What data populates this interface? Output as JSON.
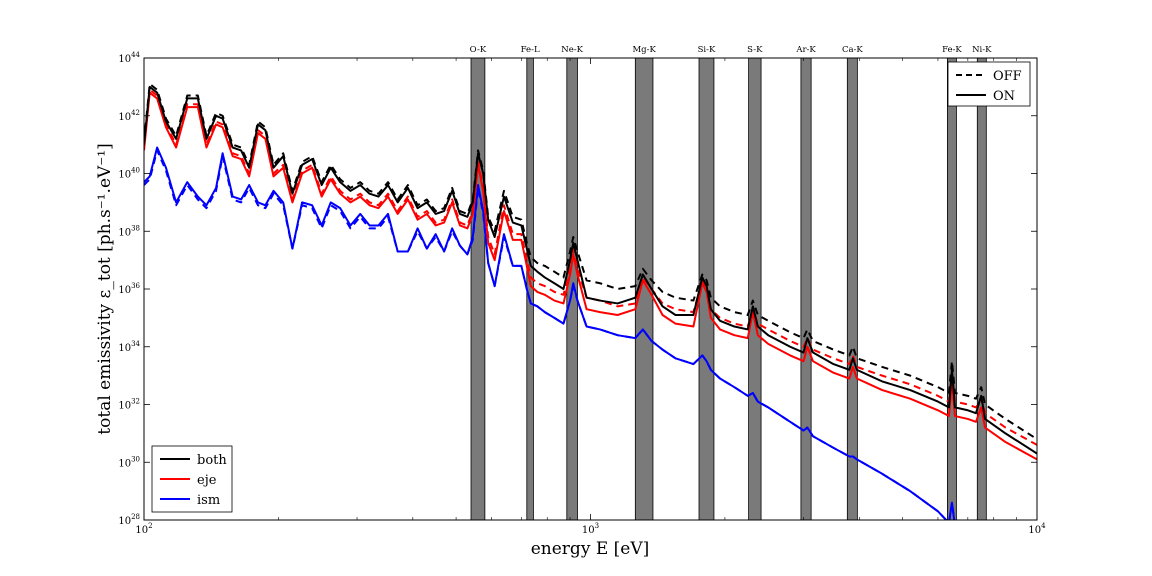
{
  "chart_data": {
    "type": "line",
    "xlabel": "energy   E   [eV]",
    "ylabel": "total emissivity   ε_tot   [ph.s⁻¹.eV⁻¹]",
    "xscale": "log",
    "yscale": "log",
    "xlim": [
      100,
      10000
    ],
    "ylim": [
      1e+28,
      1e+44
    ],
    "grid": false,
    "x_ticks": [
      {
        "value": 100,
        "base": "10",
        "exp": "2"
      },
      {
        "value": 1000,
        "base": "10",
        "exp": "3"
      },
      {
        "value": 10000,
        "base": "10",
        "exp": "4"
      }
    ],
    "y_ticks": [
      {
        "value": 1e+28,
        "base": "10",
        "exp": "28"
      },
      {
        "value": 1e+30,
        "base": "10",
        "exp": "30"
      },
      {
        "value": 1e+32,
        "base": "10",
        "exp": "32"
      },
      {
        "value": 1e+34,
        "base": "10",
        "exp": "34"
      },
      {
        "value": 1e+36,
        "base": "10",
        "exp": "36"
      },
      {
        "value": 1e+38,
        "base": "10",
        "exp": "38"
      },
      {
        "value": 1e+40,
        "base": "10",
        "exp": "40"
      },
      {
        "value": 1e+42,
        "base": "10",
        "exp": "42"
      },
      {
        "value": 1e+44,
        "base": "10",
        "exp": "44"
      }
    ],
    "bands": [
      {
        "label": "O-K",
        "from": 540,
        "to": 580
      },
      {
        "label": "Fe-L",
        "from": 720,
        "to": 745
      },
      {
        "label": "Ne-K",
        "from": 885,
        "to": 935
      },
      {
        "label": "Mg-K",
        "from": 1260,
        "to": 1380
      },
      {
        "label": "Si-K",
        "from": 1750,
        "to": 1890
      },
      {
        "label": "S-K",
        "from": 2260,
        "to": 2410
      },
      {
        "label": "Ar-K",
        "from": 2960,
        "to": 3120
      },
      {
        "label": "Ca-K",
        "from": 3760,
        "to": 3960
      },
      {
        "label": "Fe-K",
        "from": 6300,
        "to": 6600
      },
      {
        "label": "Ni-K",
        "from": 7350,
        "to": 7700
      }
    ],
    "legend_components": {
      "placement": "lower-left",
      "entries": [
        {
          "label": "both",
          "color": "#000000"
        },
        {
          "label": "eje",
          "color": "#ff0000"
        },
        {
          "label": "ism",
          "color": "#0000ff"
        }
      ]
    },
    "legend_states": {
      "placement": "upper-right",
      "entries": [
        {
          "label": "OFF",
          "style": "dashed"
        },
        {
          "label": "ON",
          "style": "solid"
        }
      ]
    },
    "x": [
      100,
      103,
      107,
      112,
      118,
      125,
      132,
      138,
      145,
      150,
      158,
      165,
      172,
      180,
      187,
      195,
      205,
      215,
      226,
      238,
      250,
      262,
      275,
      290,
      305,
      320,
      335,
      352,
      370,
      390,
      410,
      430,
      450,
      470,
      490,
      510,
      530,
      545,
      560,
      575,
      590,
      610,
      640,
      670,
      700,
      720,
      735,
      760,
      790,
      830,
      870,
      900,
      915,
      935,
      980,
      1050,
      1150,
      1260,
      1310,
      1370,
      1450,
      1550,
      1700,
      1780,
      1820,
      1860,
      1950,
      2100,
      2250,
      2310,
      2370,
      2500,
      2800,
      3000,
      3060,
      3150,
      3500,
      3800,
      3870,
      3950,
      4500,
      5200,
      6000,
      6350,
      6450,
      6550,
      7000,
      7300,
      7500,
      7650,
      8500,
      10000
    ],
    "series": [
      {
        "name": "both",
        "component": "both",
        "state": "ON",
        "color": "#000000",
        "y": [
          41.0,
          43.0,
          42.8,
          41.8,
          41.2,
          42.6,
          42.6,
          41.2,
          42.0,
          41.9,
          40.9,
          40.8,
          40.2,
          41.7,
          41.5,
          40.2,
          40.6,
          39.3,
          40.3,
          40.5,
          39.6,
          40.2,
          39.7,
          39.4,
          39.6,
          39.3,
          39.2,
          39.6,
          39.0,
          39.5,
          38.8,
          39.0,
          38.6,
          38.7,
          39.4,
          38.6,
          38.5,
          39.0,
          40.7,
          40.0,
          38.4,
          37.8,
          39.2,
          38.3,
          38.2,
          37.4,
          36.8,
          36.6,
          36.4,
          36.2,
          36.0,
          37.0,
          37.6,
          37.0,
          35.7,
          35.6,
          35.5,
          35.7,
          36.5,
          36.0,
          35.4,
          35.1,
          35.1,
          36.4,
          36.1,
          35.3,
          34.9,
          34.7,
          34.6,
          35.4,
          34.7,
          34.4,
          34.0,
          33.8,
          34.3,
          33.8,
          33.4,
          33.2,
          33.6,
          33.2,
          32.8,
          32.5,
          32.1,
          31.9,
          33.2,
          31.9,
          31.8,
          31.7,
          32.3,
          31.5,
          31.0,
          30.3
        ]
      },
      {
        "name": "both",
        "component": "both",
        "state": "OFF",
        "color": "#000000",
        "y": [
          41.1,
          43.1,
          42.9,
          41.9,
          41.3,
          42.7,
          42.7,
          41.3,
          42.1,
          42.0,
          41.0,
          40.9,
          40.3,
          41.8,
          41.6,
          40.3,
          40.7,
          39.4,
          40.4,
          40.6,
          39.7,
          40.3,
          39.8,
          39.5,
          39.7,
          39.4,
          39.3,
          39.7,
          39.1,
          39.6,
          38.9,
          39.1,
          38.7,
          38.8,
          39.5,
          38.7,
          38.6,
          39.1,
          40.8,
          40.1,
          38.5,
          38.0,
          39.4,
          38.5,
          38.4,
          37.6,
          37.1,
          36.9,
          36.8,
          36.6,
          36.4,
          37.3,
          37.8,
          37.3,
          36.3,
          36.2,
          36.0,
          36.1,
          36.7,
          36.3,
          35.9,
          35.7,
          35.6,
          36.5,
          36.3,
          35.7,
          35.4,
          35.2,
          35.1,
          35.6,
          35.1,
          34.9,
          34.5,
          34.3,
          34.6,
          34.2,
          33.9,
          33.7,
          34.0,
          33.6,
          33.3,
          33.0,
          32.6,
          32.4,
          33.5,
          32.4,
          32.3,
          32.2,
          32.6,
          32.0,
          31.5,
          30.8
        ]
      },
      {
        "name": "eje",
        "component": "eje",
        "state": "ON",
        "color": "#ff0000",
        "y": [
          40.8,
          42.8,
          42.6,
          41.6,
          40.9,
          42.3,
          42.3,
          40.9,
          41.7,
          41.6,
          40.6,
          40.5,
          39.9,
          41.4,
          41.2,
          39.9,
          40.2,
          39.0,
          40.0,
          40.2,
          39.2,
          39.8,
          39.3,
          39.0,
          39.2,
          38.9,
          38.8,
          39.2,
          38.6,
          39.1,
          38.4,
          38.6,
          38.2,
          38.3,
          39.0,
          38.2,
          38.1,
          38.6,
          40.3,
          39.4,
          37.6,
          37.0,
          38.7,
          37.7,
          37.7,
          36.8,
          36.1,
          35.9,
          35.8,
          35.6,
          35.5,
          36.5,
          37.2,
          36.5,
          35.3,
          35.2,
          35.1,
          35.3,
          36.3,
          35.8,
          35.1,
          34.8,
          34.7,
          36.2,
          35.9,
          35.0,
          34.6,
          34.4,
          34.3,
          35.2,
          34.4,
          34.1,
          33.7,
          33.5,
          34.0,
          33.5,
          33.1,
          32.9,
          33.3,
          32.9,
          32.5,
          32.2,
          31.8,
          31.6,
          32.8,
          31.6,
          31.5,
          31.4,
          31.9,
          31.2,
          30.7,
          30.1
        ]
      },
      {
        "name": "eje",
        "component": "eje",
        "state": "OFF",
        "color": "#ff0000",
        "y": [
          40.9,
          42.9,
          42.7,
          41.7,
          41.0,
          42.4,
          42.4,
          41.0,
          41.8,
          41.7,
          40.7,
          40.6,
          40.0,
          41.5,
          41.3,
          40.0,
          40.3,
          39.1,
          40.1,
          40.3,
          39.3,
          39.9,
          39.4,
          39.1,
          39.3,
          39.0,
          38.9,
          39.3,
          38.7,
          39.2,
          38.5,
          38.7,
          38.3,
          38.4,
          39.1,
          38.3,
          38.2,
          38.7,
          40.4,
          39.5,
          37.8,
          37.2,
          38.9,
          37.9,
          37.9,
          37.0,
          36.4,
          36.2,
          36.1,
          35.9,
          35.8,
          36.7,
          37.4,
          36.7,
          35.7,
          35.6,
          35.4,
          35.5,
          36.4,
          36.0,
          35.5,
          35.3,
          35.2,
          36.3,
          36.0,
          35.3,
          35.0,
          34.8,
          34.7,
          35.3,
          34.8,
          34.6,
          34.2,
          34.0,
          34.3,
          33.9,
          33.6,
          33.4,
          33.7,
          33.3,
          33.0,
          32.7,
          32.3,
          32.1,
          33.0,
          32.1,
          32.0,
          31.9,
          32.2,
          31.7,
          31.2,
          30.6
        ]
      },
      {
        "name": "ism",
        "component": "ism",
        "state": "ON",
        "color": "#0000ff",
        "y": [
          39.7,
          39.9,
          40.9,
          40.2,
          39.0,
          39.7,
          39.2,
          38.9,
          39.5,
          40.7,
          39.2,
          39.1,
          39.6,
          39.0,
          38.9,
          39.4,
          39.0,
          37.4,
          39.0,
          38.9,
          38.2,
          39.0,
          38.8,
          38.2,
          38.6,
          38.2,
          38.2,
          38.6,
          37.3,
          37.3,
          38.1,
          37.4,
          37.9,
          37.3,
          38.1,
          37.5,
          37.2,
          37.8,
          39.6,
          38.7,
          36.9,
          36.1,
          37.9,
          36.8,
          36.8,
          36.0,
          35.5,
          35.4,
          35.2,
          35.0,
          34.8,
          35.6,
          36.2,
          35.6,
          34.7,
          34.6,
          34.4,
          34.3,
          34.6,
          34.2,
          33.9,
          33.6,
          33.4,
          33.7,
          33.5,
          33.2,
          32.9,
          32.6,
          32.3,
          32.4,
          32.1,
          31.9,
          31.4,
          31.1,
          31.2,
          30.9,
          30.5,
          30.2,
          30.2,
          30.1,
          29.6,
          29.0,
          28.3,
          27.9,
          28.6,
          27.8,
          27.6,
          27.3,
          27.5,
          27.1,
          26.5,
          25.6
        ]
      },
      {
        "name": "ism",
        "component": "ism",
        "state": "OFF",
        "color": "#0000ff",
        "y": [
          39.6,
          39.8,
          40.8,
          40.1,
          38.9,
          39.6,
          39.1,
          38.8,
          39.4,
          40.6,
          39.1,
          39.0,
          39.5,
          38.9,
          38.8,
          39.3,
          38.9,
          37.4,
          38.9,
          38.8,
          38.1,
          38.9,
          38.7,
          38.1,
          38.5,
          38.1,
          38.1,
          38.5,
          37.3,
          37.3,
          38.0,
          37.4,
          37.8,
          37.3,
          38.0,
          37.5,
          37.2,
          37.7,
          39.5,
          38.6,
          36.9,
          36.1,
          37.8,
          36.8,
          36.8,
          36.0,
          35.5,
          35.4,
          35.2,
          35.0,
          34.8,
          35.6,
          36.1,
          35.6,
          34.7,
          34.6,
          34.4,
          34.3,
          34.6,
          34.2,
          33.9,
          33.6,
          33.4,
          33.7,
          33.5,
          33.2,
          32.9,
          32.6,
          32.3,
          32.4,
          32.1,
          31.9,
          31.4,
          31.1,
          31.2,
          30.9,
          30.5,
          30.2,
          30.2,
          30.1,
          29.6,
          29.0,
          28.3,
          27.9,
          28.6,
          27.8,
          27.6,
          27.3,
          27.5,
          27.1,
          26.5,
          25.6
        ]
      }
    ]
  }
}
